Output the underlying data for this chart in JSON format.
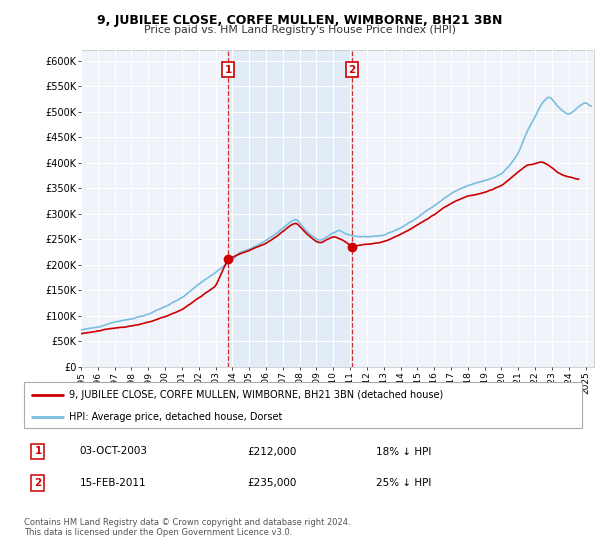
{
  "title": "9, JUBILEE CLOSE, CORFE MULLEN, WIMBORNE, BH21 3BN",
  "subtitle": "Price paid vs. HM Land Registry's House Price Index (HPI)",
  "hpi_color": "#7bbde0",
  "hpi_fill_color": "#ddeeff",
  "price_color": "#cc0000",
  "marker_color": "#cc0000",
  "plot_bg": "#f0f4fa",
  "legend_label_red": "9, JUBILEE CLOSE, CORFE MULLEN, WIMBORNE, BH21 3BN (detached house)",
  "legend_label_blue": "HPI: Average price, detached house, Dorset",
  "sale1_date": "03-OCT-2003",
  "sale1_price": "£212,000",
  "sale1_hpi": "18% ↓ HPI",
  "sale2_date": "15-FEB-2011",
  "sale2_price": "£235,000",
  "sale2_hpi": "25% ↓ HPI",
  "footer": "Contains HM Land Registry data © Crown copyright and database right 2024.\nThis data is licensed under the Open Government Licence v3.0.",
  "ytick_labels": [
    "£0",
    "£50K",
    "£100K",
    "£150K",
    "£200K",
    "£250K",
    "£300K",
    "£350K",
    "£400K",
    "£450K",
    "£500K",
    "£550K",
    "£600K"
  ],
  "yticks": [
    0,
    50000,
    100000,
    150000,
    200000,
    250000,
    300000,
    350000,
    400000,
    450000,
    500000,
    550000,
    600000
  ],
  "xmin": 1995.0,
  "xmax": 2025.5,
  "ymin": 0,
  "ymax": 620000,
  "sale1_x": 2003.75,
  "sale1_y": 212000,
  "sale2_x": 2011.12,
  "sale2_y": 235000,
  "vline1_x": 2003.75,
  "vline2_x": 2011.12
}
